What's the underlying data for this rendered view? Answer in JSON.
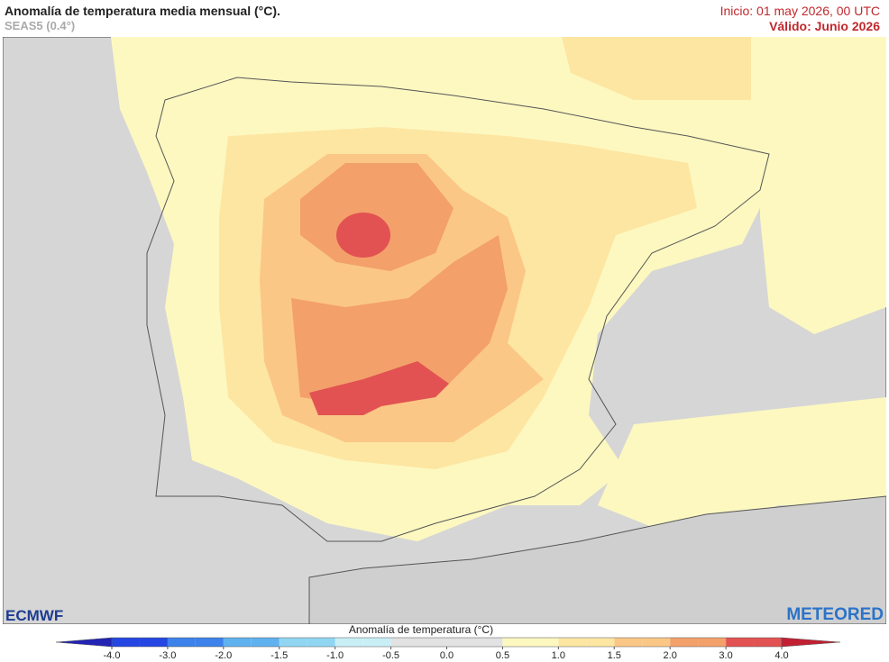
{
  "header": {
    "title": "Anomalía de temperatura media mensual (°C).",
    "subtitle": "SEAS5 (0.4°)",
    "init": "Inicio: 01 may 2026, 00 UTC",
    "valid": "Válido: Junio 2026"
  },
  "logos": {
    "left": "ECMWF",
    "right": "METEORED"
  },
  "colorbar": {
    "title": "Anomalía de temperatura (°C)",
    "ticks": [
      {
        "value": -4,
        "label": "-4.0"
      },
      {
        "value": -3,
        "label": "-3.0"
      },
      {
        "value": -2,
        "label": "-2.0"
      },
      {
        "value": -1.5,
        "label": "-1.5"
      },
      {
        "value": -1,
        "label": "-1.0"
      },
      {
        "value": -0.5,
        "label": "-0.5"
      },
      {
        "value": 0,
        "label": "0.0"
      },
      {
        "value": 0.5,
        "label": "0.5"
      },
      {
        "value": 1,
        "label": "1.0"
      },
      {
        "value": 1.5,
        "label": "1.5"
      },
      {
        "value": 2,
        "label": "2.0"
      },
      {
        "value": 3,
        "label": "3.0"
      },
      {
        "value": 4,
        "label": "4.0"
      }
    ],
    "colors": [
      "#2323b4",
      "#2546e2",
      "#3d82ea",
      "#60b2ef",
      "#90d6f3",
      "#c9eff6",
      "#e2e2e2",
      "#e2e2e2",
      "#fdf8c0",
      "#fde6a2",
      "#fbc786",
      "#f3a06b",
      "#e25252",
      "#c21f33"
    ]
  }
}
